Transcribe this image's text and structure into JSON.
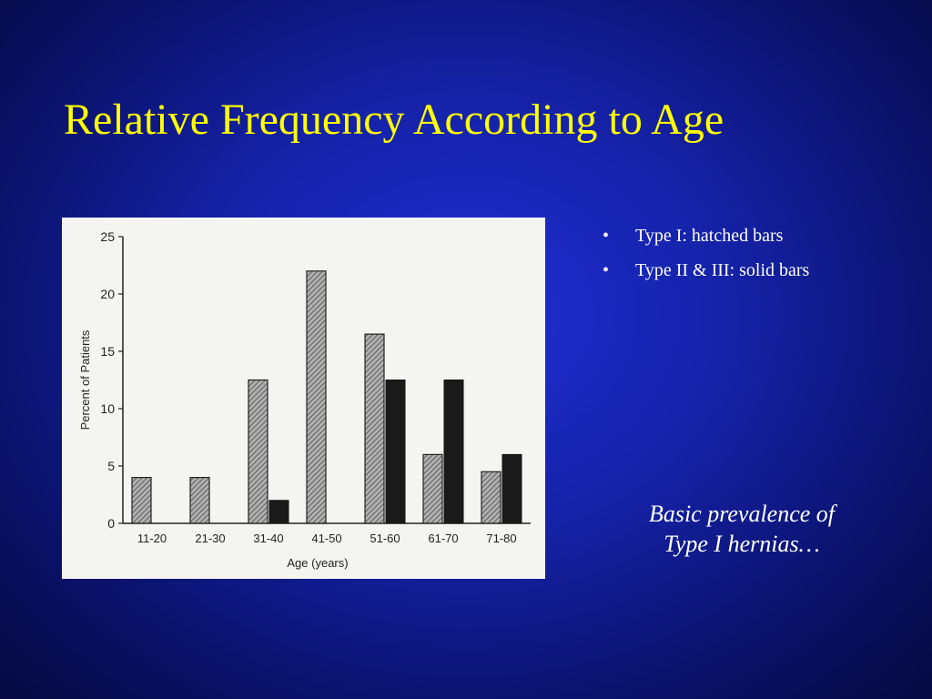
{
  "slide": {
    "title": "Relative Frequency According to Age",
    "bullets": [
      {
        "marker": "•",
        "text": "Type I: hatched bars"
      },
      {
        "marker": "•",
        "text": "Type II & III: solid bars"
      }
    ],
    "caption_line1": "Basic prevalence of",
    "caption_line2": "Type I hernias…"
  },
  "colors": {
    "background": "#1522a8",
    "title": "#ffff00",
    "text": "#ffffff",
    "hatched_bar": "#9a9a9a",
    "solid_bar": "#1a1a1a"
  },
  "chart_data": {
    "type": "bar",
    "xlabel": "Age (years)",
    "ylabel": "Percent of Patients",
    "categories": [
      "11-20",
      "21-30",
      "31-40",
      "41-50",
      "51-60",
      "61-70",
      "71-80"
    ],
    "yticks": [
      0,
      5,
      10,
      15,
      20,
      25
    ],
    "ylim": [
      0,
      25
    ],
    "grid": false,
    "series": [
      {
        "style": "hatched",
        "values": [
          4,
          4,
          12.5,
          22,
          16.5,
          6,
          4.5
        ]
      },
      {
        "style": "solid",
        "values": [
          0,
          0,
          2,
          0,
          12.5,
          12.5,
          6
        ]
      }
    ]
  }
}
